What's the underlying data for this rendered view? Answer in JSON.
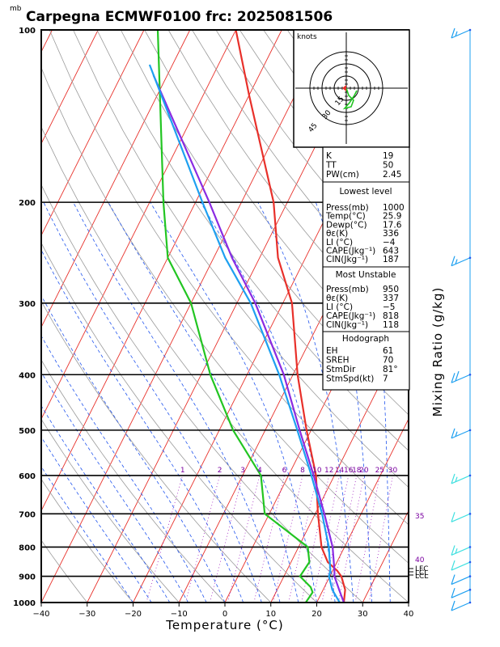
{
  "header": {
    "unit_label": "mb",
    "title": "Carpegna ECMWF0100  frc: 2025081506"
  },
  "chart_data": {
    "type": "line",
    "xlabel": "Temperature (°C)",
    "ylabel": "Mixing Ratio (g/kg)",
    "xlim": [
      -40,
      40
    ],
    "ylim_mb": [
      1000,
      100
    ],
    "x_ticks": [
      "−40",
      "−30",
      "−20",
      "−10",
      "0",
      "10",
      "20",
      "30",
      "40"
    ],
    "x_tick_values": [
      -40,
      -30,
      -20,
      -10,
      0,
      10,
      20,
      30,
      40
    ],
    "pressure_ticks": [
      "100",
      "200",
      "300",
      "400",
      "500",
      "600",
      "700",
      "800",
      "900",
      "1000"
    ],
    "pressure_tick_values": [
      100,
      200,
      300,
      400,
      500,
      600,
      700,
      800,
      900,
      1000
    ],
    "mixing_ratio_labels": [
      "1",
      "2",
      "3",
      "4",
      "6",
      "8",
      "10",
      "12",
      "14",
      "16",
      "18",
      "20",
      "25",
      "30"
    ],
    "mixing_ratio_values": [
      1,
      2,
      3,
      4,
      6,
      8,
      10,
      12,
      14,
      16,
      18,
      20,
      25,
      30
    ],
    "theta_e_labels": [
      "35",
      "40"
    ],
    "level_markers": [
      "LFC",
      "LCL",
      "LCL"
    ],
    "series": [
      {
        "name": "",
        "color": "#e8302a",
        "points": [
          [
            25.9,
            1000
          ],
          [
            24.8,
            950
          ],
          [
            22.5,
            900
          ],
          [
            21.0,
            880
          ],
          [
            18.0,
            850
          ],
          [
            15.0,
            800
          ],
          [
            10.6,
            700
          ],
          [
            6.0,
            600
          ],
          [
            -1.0,
            500
          ],
          [
            -9.0,
            400
          ],
          [
            -18.0,
            300
          ],
          [
            -26.0,
            250
          ],
          [
            -33.0,
            200
          ],
          [
            -50.0,
            130
          ],
          [
            -60.0,
            100
          ]
        ]
      },
      {
        "name": "",
        "color": "#22c522",
        "points": [
          [
            17.6,
            1000
          ],
          [
            18.0,
            960
          ],
          [
            17.0,
            940
          ],
          [
            13.5,
            900
          ],
          [
            14.0,
            850
          ],
          [
            12.0,
            800
          ],
          [
            -1.0,
            700
          ],
          [
            -6.0,
            600
          ],
          [
            -17.0,
            500
          ],
          [
            -28.0,
            400
          ],
          [
            -40.0,
            300
          ],
          [
            -50.0,
            250
          ],
          [
            -57.0,
            200
          ],
          [
            -77.0,
            100
          ]
        ]
      },
      {
        "name": "",
        "color": "#8a2be2",
        "points": [
          [
            25.9,
            1000
          ],
          [
            23.5,
            950
          ],
          [
            21.0,
            900
          ],
          [
            20.4,
            880
          ],
          [
            17.4,
            800
          ],
          [
            12.0,
            700
          ],
          [
            5.5,
            600
          ],
          [
            -2.5,
            500
          ],
          [
            -12.0,
            400
          ],
          [
            -26.0,
            300
          ],
          [
            -36.0,
            250
          ],
          [
            -47.0,
            200
          ],
          [
            -73.0,
            120
          ]
        ]
      },
      {
        "name": "",
        "color": "#1ea0f0",
        "points": [
          [
            25.0,
            1000
          ],
          [
            22.0,
            950
          ],
          [
            19.8,
            900
          ],
          [
            19.5,
            880
          ],
          [
            16.6,
            800
          ],
          [
            11.5,
            700
          ],
          [
            5.0,
            600
          ],
          [
            -3.0,
            500
          ],
          [
            -13.0,
            400
          ],
          [
            -27.0,
            300
          ],
          [
            -37.5,
            250
          ],
          [
            -48.5,
            200
          ],
          [
            -75.0,
            115
          ]
        ]
      }
    ],
    "wind_barbs": [
      {
        "p": 100,
        "speed_kt": 15
      },
      {
        "p": 250,
        "speed_kt": 15
      },
      {
        "p": 400,
        "speed_kt": 20
      },
      {
        "p": 500,
        "speed_kt": 15
      },
      {
        "p": 600,
        "speed_kt": 15
      },
      {
        "p": 700,
        "speed_kt": 10
      },
      {
        "p": 800,
        "speed_kt": 15
      },
      {
        "p": 850,
        "speed_kt": 10
      },
      {
        "p": 900,
        "speed_kt": 10
      },
      {
        "p": 950,
        "speed_kt": 10
      },
      {
        "p": 1000,
        "speed_kt": 10
      }
    ]
  },
  "hodograph": {
    "units": "knots",
    "ring_labels": [
      "15",
      "30",
      "45"
    ]
  },
  "indices": {
    "rows": [
      {
        "label": "K",
        "value": "19"
      },
      {
        "label": "TT",
        "value": "50"
      },
      {
        "label": "PW(cm)",
        "value": "2.45"
      }
    ]
  },
  "lowest_level": {
    "heading": "Lowest level",
    "rows": [
      {
        "label": "Press(mb)",
        "value": "1000"
      },
      {
        "label": "Temp(°C)",
        "value": "25.9"
      },
      {
        "label": "Dewp(°C)",
        "value": "17.6"
      },
      {
        "label": "θε(K)",
        "value": "336"
      },
      {
        "label": "LI (°C)",
        "value": "−4"
      },
      {
        "label": "CAPE(Jkg⁻¹)",
        "value": "643"
      },
      {
        "label": "CIN(Jkg⁻¹)",
        "value": "187"
      }
    ]
  },
  "most_unstable": {
    "heading": "Most Unstable",
    "rows": [
      {
        "label": "Press(mb)",
        "value": "950"
      },
      {
        "label": "θε(K)",
        "value": "337"
      },
      {
        "label": "LI (°C)",
        "value": "−5"
      },
      {
        "label": "CAPE(Jkg⁻¹)",
        "value": "818"
      },
      {
        "label": "CIN(Jkg⁻¹)",
        "value": "118"
      }
    ]
  },
  "hodograph_table": {
    "heading": "Hodograph",
    "rows": [
      {
        "label": "EH",
        "value": "61"
      },
      {
        "label": "SREH",
        "value": "70"
      },
      {
        "label": "StmDir",
        "value": "81°"
      },
      {
        "label": "StmSpd(kt)",
        "value": "7"
      }
    ]
  },
  "colors": {
    "isotherm": "#e8302a",
    "dry_adiabat": "#e8302a",
    "moist_adiabat": "#2255ee",
    "mixing_ratio": "#a020c0",
    "temperature": "#e8302a",
    "dewpoint": "#22c522",
    "parcel": "#8a2be2",
    "virtual": "#1ea0f0",
    "barb": "#1ea0f0",
    "barb_light": "#40e0e0"
  }
}
